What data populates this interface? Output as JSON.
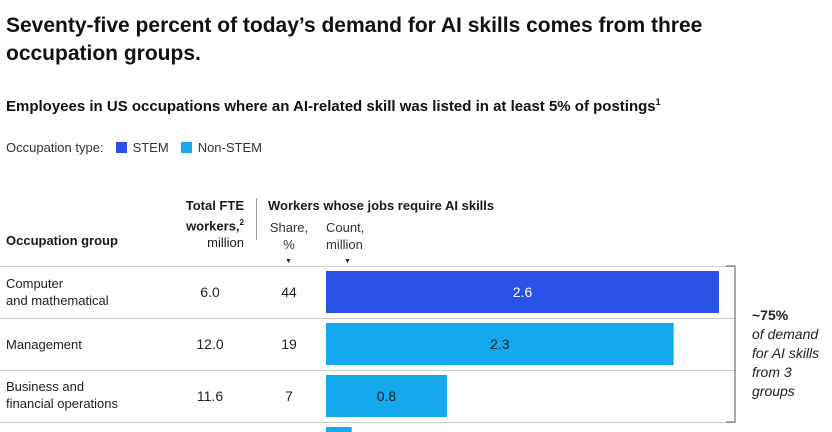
{
  "title": "Seventy-five percent of today’s demand for AI skills comes from three occupation groups.",
  "subtitle": "Employees in US occupations where an AI-related skill was listed in at least 5% of postings",
  "subtitle_note": "1",
  "legend": {
    "label": "Occupation type:",
    "items": [
      {
        "name": "STEM",
        "color": "#2a52e8"
      },
      {
        "name": "Non-STEM",
        "color": "#14a9ee"
      }
    ]
  },
  "columns": {
    "group": "Occupation group",
    "fte_line1": "Total FTE",
    "fte_line2": "workers,",
    "fte_note": "2",
    "fte_unit": "million",
    "workers": "Workers whose jobs require AI skills",
    "share_line1": "Share,",
    "share_line2": "%",
    "count_line1": "Count,",
    "count_line2": "million",
    "sort_arrow": "▼"
  },
  "annotation": {
    "value": "~75%",
    "line1": "of demand",
    "line2": "for AI skills",
    "line3": "from 3",
    "line4": "groups"
  },
  "chart_data": {
    "type": "table",
    "title": "Employees in US occupations where an AI-related skill was listed in at least 5% of postings",
    "columns": [
      "Occupation group",
      "Total FTE workers, million",
      "Share, %",
      "Count, million"
    ],
    "count_axis_max": 2.6,
    "rows": [
      {
        "label_line1": "Computer",
        "label_line2": "and mathematical",
        "fte": "6.0",
        "share": "44",
        "count": 2.6,
        "count_label": "2.6",
        "type": "STEM"
      },
      {
        "label_line1": "Management",
        "label_line2": "",
        "fte": "12.0",
        "share": "19",
        "count": 2.3,
        "count_label": "2.3",
        "type": "Non-STEM"
      },
      {
        "label_line1": "Business and",
        "label_line2": "financial operations",
        "fte": "11.6",
        "share": "7",
        "count": 0.8,
        "count_label": "0.8",
        "type": "Non-STEM"
      },
      {
        "label_line1": "",
        "label_line2": "",
        "fte": "",
        "share": "",
        "count": 0.17,
        "count_label": "",
        "type": "Non-STEM"
      }
    ]
  }
}
